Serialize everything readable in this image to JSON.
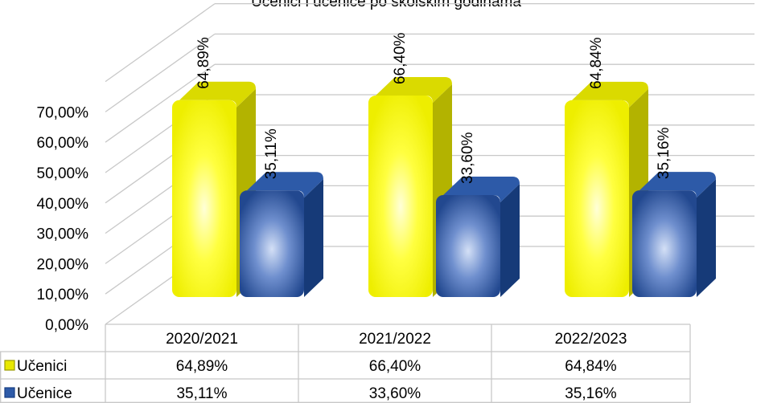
{
  "chart_data": {
    "type": "bar",
    "title": "Učenici i učenice po školskim godinama",
    "categories": [
      "2020/2021",
      "2021/2022",
      "2022/2023"
    ],
    "series": [
      {
        "name": "Učenici",
        "values": [
          64.89,
          66.4,
          64.84
        ],
        "labels": [
          "64,89%",
          "66,40%",
          "64,84%"
        ],
        "color": "#ffff00"
      },
      {
        "name": "Učenice",
        "values": [
          35.11,
          33.6,
          35.16
        ],
        "labels": [
          "35,11%",
          "33,60%",
          "35,16%"
        ],
        "color": "#1f4e9c"
      }
    ],
    "ylim": [
      0,
      70
    ],
    "yticks": [
      "0,00%",
      "10,00%",
      "20,00%",
      "30,00%",
      "40,00%",
      "50,00%",
      "60,00%",
      "70,00%"
    ],
    "grid": true,
    "three_d": true,
    "data_table": true,
    "legend": "data-table"
  }
}
